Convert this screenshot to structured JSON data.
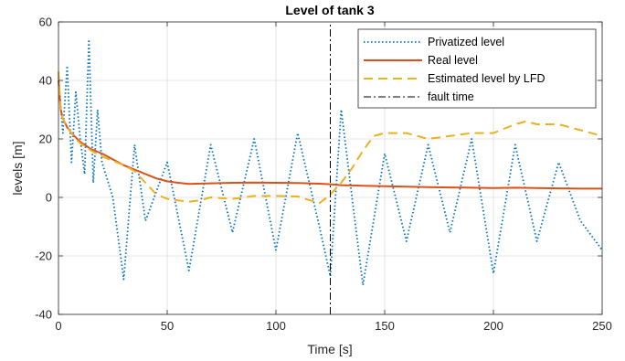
{
  "chart_data": {
    "type": "line",
    "title": "Level of tank 3",
    "xlabel": "Time [s]",
    "ylabel": "levels [m]",
    "xlim": [
      0,
      250
    ],
    "ylim": [
      -40,
      60
    ],
    "xticks": [
      "0",
      "50",
      "100",
      "150",
      "200",
      "250"
    ],
    "yticks": [
      "-40",
      "-20",
      "0",
      "20",
      "40",
      "60"
    ],
    "grid": true,
    "legend_position": "top-right",
    "fault_time": 125,
    "series": [
      {
        "name": "Privatized level",
        "style": "dotted",
        "color": "#0072BD",
        "description": "noisy samples scattered around the real level",
        "x": [
          0,
          2,
          4,
          6,
          8,
          10,
          12,
          14,
          16,
          18,
          20,
          25,
          30,
          35,
          40,
          50,
          60,
          70,
          80,
          90,
          100,
          110,
          120,
          125,
          130,
          140,
          150,
          160,
          170,
          180,
          190,
          200,
          210,
          220,
          230,
          240,
          250
        ],
        "y": [
          41,
          22,
          45,
          12,
          36,
          20,
          8,
          54,
          5,
          30,
          12,
          0,
          -28,
          18,
          -8,
          12,
          -25,
          18,
          -12,
          20,
          -18,
          22,
          -10,
          -27,
          30,
          -30,
          15,
          -15,
          18,
          -12,
          20,
          -26,
          18,
          -15,
          12,
          -8,
          -18
        ]
      },
      {
        "name": "Real level",
        "style": "solid",
        "color": "#D95319",
        "x": [
          0,
          1,
          2,
          4,
          6,
          8,
          10,
          15,
          20,
          25,
          30,
          35,
          40,
          45,
          50,
          55,
          60,
          70,
          80,
          90,
          100,
          110,
          120,
          125,
          130,
          140,
          150,
          160,
          170,
          180,
          190,
          200,
          210,
          220,
          230,
          240,
          250
        ],
        "y": [
          40,
          30,
          27,
          24,
          22,
          20.5,
          19,
          16.5,
          15,
          13,
          11,
          9.5,
          8,
          6.5,
          5.5,
          5,
          4.6,
          4.8,
          5.0,
          5.1,
          5.0,
          4.9,
          4.7,
          4.5,
          4.2,
          4.0,
          3.8,
          3.7,
          3.5,
          3.4,
          3.3,
          3.2,
          3.3,
          3.2,
          3.1,
          3.0,
          3.0
        ]
      },
      {
        "name": "Estimated level by LFD",
        "style": "dashed",
        "color": "#EDB120",
        "x": [
          0,
          1,
          2,
          4,
          6,
          8,
          10,
          15,
          20,
          25,
          30,
          35,
          40,
          45,
          50,
          55,
          60,
          65,
          70,
          80,
          90,
          100,
          110,
          120,
          125,
          130,
          135,
          140,
          145,
          150,
          160,
          170,
          180,
          190,
          200,
          210,
          215,
          220,
          230,
          240,
          250
        ],
        "y": [
          43,
          30,
          27,
          24,
          22,
          20,
          18.5,
          16,
          14,
          12.5,
          11,
          9,
          5,
          1,
          -0.5,
          -1,
          -1.5,
          -1,
          0,
          -0.5,
          0.5,
          0.5,
          0.3,
          -2,
          1,
          5,
          10,
          16,
          21,
          22,
          22,
          20,
          21,
          22,
          22,
          25,
          26,
          25,
          25,
          23,
          21
        ]
      },
      {
        "name": "fault time",
        "style": "dashdot",
        "color": "#000000",
        "x": [
          125,
          125
        ],
        "y": [
          -40,
          60
        ]
      }
    ]
  }
}
